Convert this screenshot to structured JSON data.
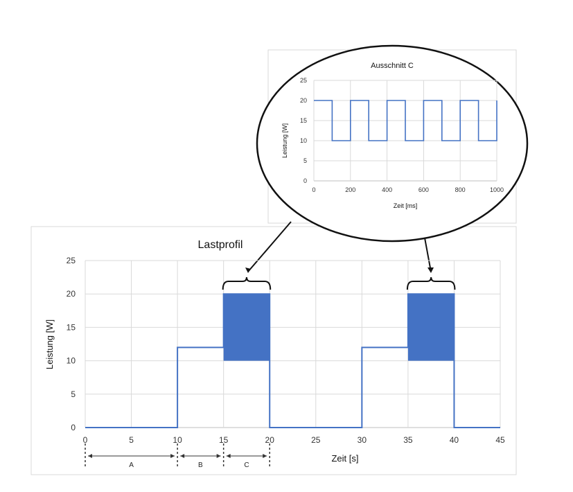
{
  "chart_data": [
    {
      "type": "line",
      "title": "Lastprofil",
      "xlabel": "Zeit [s]",
      "ylabel": "Leistung [W]",
      "xlim": [
        0,
        45
      ],
      "ylim": [
        0,
        25
      ],
      "xticks": [
        0,
        5,
        10,
        15,
        20,
        25,
        30,
        35,
        40,
        45
      ],
      "yticks": [
        0,
        5,
        10,
        15,
        20,
        25
      ],
      "grid": true,
      "series": [
        {
          "color": "#4472c4",
          "x": [
            0,
            10,
            10,
            15,
            15,
            20,
            20,
            30,
            30,
            35,
            35,
            40,
            40,
            45
          ],
          "y": [
            0,
            0,
            12,
            12,
            20,
            20,
            0,
            0,
            12,
            12,
            20,
            20,
            0,
            0
          ]
        }
      ],
      "shaded_regions": [
        {
          "x": [
            15,
            20
          ],
          "y": [
            10,
            20
          ],
          "color": "#4472c4"
        },
        {
          "x": [
            35,
            40
          ],
          "y": [
            10,
            20
          ],
          "color": "#4472c4"
        }
      ],
      "segments": [
        {
          "label": "A",
          "from": 0,
          "to": 10
        },
        {
          "label": "B",
          "from": 10,
          "to": 15
        },
        {
          "label": "C",
          "from": 15,
          "to": 20
        }
      ]
    },
    {
      "type": "line",
      "title": "Ausschnitt C",
      "xlabel": "Zeit [ms]",
      "ylabel": "Leistung [W]",
      "xlim": [
        0,
        1000
      ],
      "ylim": [
        0,
        25
      ],
      "xticks": [
        0,
        200,
        400,
        600,
        800,
        1000
      ],
      "yticks": [
        0,
        5,
        10,
        15,
        20,
        25
      ],
      "grid": true,
      "series": [
        {
          "color": "#4472c4",
          "x": [
            0,
            100,
            100,
            200,
            200,
            300,
            300,
            400,
            400,
            500,
            500,
            600,
            600,
            700,
            700,
            800,
            800,
            900,
            900,
            1000,
            1000
          ],
          "y": [
            20,
            20,
            10,
            10,
            20,
            20,
            10,
            10,
            20,
            20,
            10,
            10,
            20,
            20,
            10,
            10,
            20,
            20,
            10,
            10,
            20
          ]
        }
      ]
    }
  ]
}
